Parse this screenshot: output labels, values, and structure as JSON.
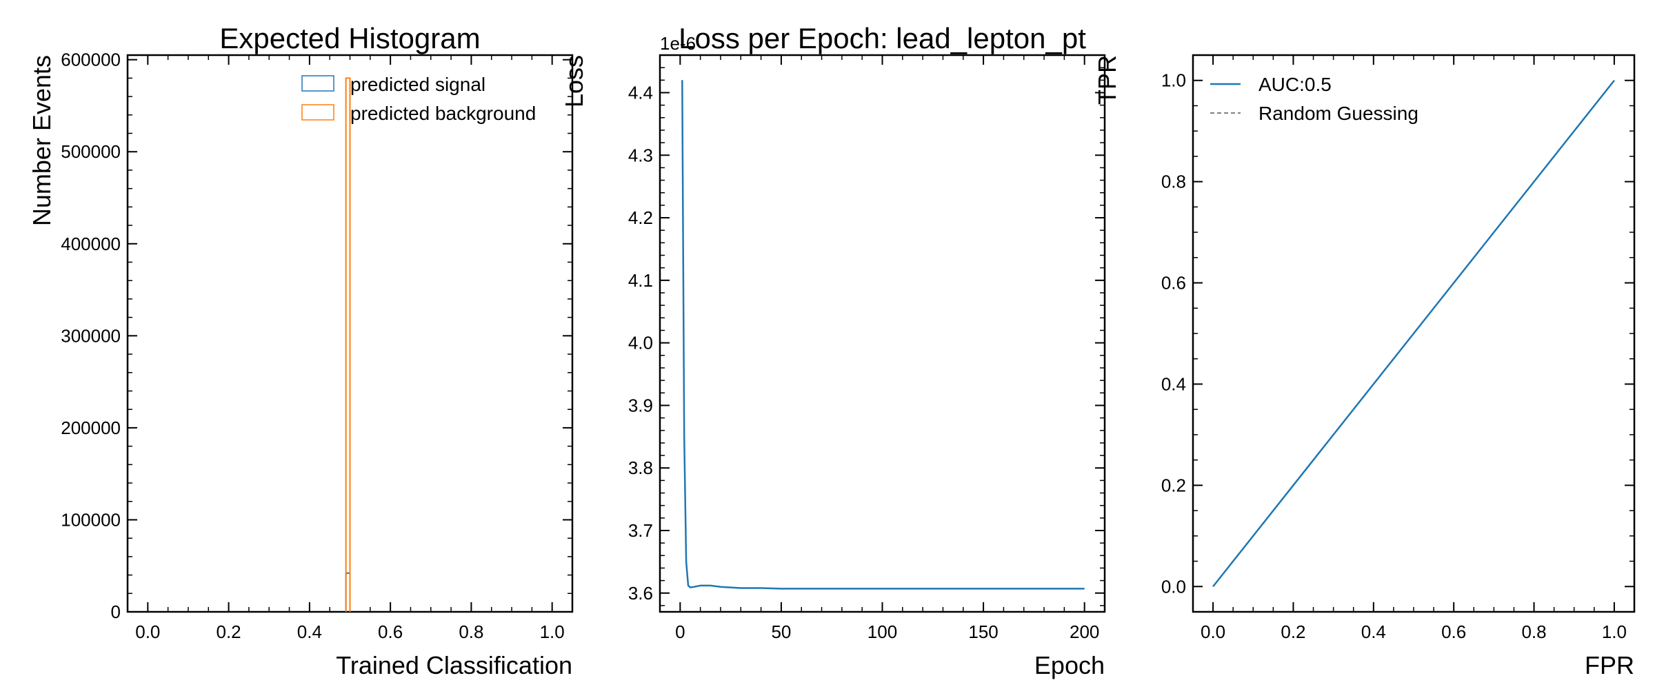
{
  "colors": {
    "signal": "#1f77b4",
    "background": "#ff7f0e",
    "loss_line": "#1f77b4",
    "roc_line": "#1f77b4",
    "random_line": "#555555"
  },
  "chart_data": [
    {
      "type": "histogram",
      "title": "Expected Histogram",
      "xlabel": "Trained Classification",
      "ylabel": "Number Events",
      "xlim": [
        -0.05,
        1.05
      ],
      "ylim": [
        0,
        605000
      ],
      "xticks": [
        0.0,
        0.2,
        0.4,
        0.6,
        0.8,
        1.0
      ],
      "xtick_labels": [
        "0.0",
        "0.2",
        "0.4",
        "0.6",
        "0.8",
        "1.0"
      ],
      "yticks": [
        0,
        100000,
        200000,
        300000,
        400000,
        500000,
        600000
      ],
      "ytick_labels": [
        "0",
        "100000",
        "200000",
        "300000",
        "400000",
        "500000",
        "600000"
      ],
      "legend_position": "top-right",
      "series": [
        {
          "name": "predicted signal",
          "bin_edges": [
            0.49,
            0.5
          ],
          "counts": [
            42000
          ]
        },
        {
          "name": "predicted background",
          "bin_edges": [
            0.49,
            0.5
          ],
          "counts": [
            580000
          ]
        }
      ]
    },
    {
      "type": "line",
      "title": "Loss per Epoch: lead_lepton_pt",
      "xlabel": "Epoch",
      "ylabel": "Loss",
      "offset_text": "1e-6",
      "xlim": [
        -10,
        210
      ],
      "ylim": [
        3.57,
        4.46
      ],
      "xticks": [
        0,
        50,
        100,
        150,
        200
      ],
      "xtick_labels": [
        "0",
        "50",
        "100",
        "150",
        "200"
      ],
      "yticks": [
        3.6,
        3.7,
        3.8,
        3.9,
        4.0,
        4.1,
        4.2,
        4.3,
        4.4
      ],
      "ytick_labels": [
        "3.6",
        "3.7",
        "3.8",
        "3.9",
        "4.0",
        "4.1",
        "4.2",
        "4.3",
        "4.4"
      ],
      "series": [
        {
          "x": [
            1,
            2,
            3,
            4,
            5,
            7,
            10,
            15,
            20,
            30,
            40,
            50,
            100,
            150,
            200
          ],
          "y": [
            4.42,
            3.85,
            3.65,
            3.612,
            3.609,
            3.61,
            3.612,
            3.612,
            3.61,
            3.608,
            3.608,
            3.607,
            3.607,
            3.607,
            3.607
          ]
        }
      ]
    },
    {
      "type": "line",
      "title": "",
      "xlabel": "FPR",
      "ylabel": "TPR",
      "xlim": [
        -0.05,
        1.05
      ],
      "ylim": [
        -0.05,
        1.05
      ],
      "xticks": [
        0.0,
        0.2,
        0.4,
        0.6,
        0.8,
        1.0
      ],
      "xtick_labels": [
        "0.0",
        "0.2",
        "0.4",
        "0.6",
        "0.8",
        "1.0"
      ],
      "yticks": [
        0.0,
        0.2,
        0.4,
        0.6,
        0.8,
        1.0
      ],
      "ytick_labels": [
        "0.0",
        "0.2",
        "0.4",
        "0.6",
        "0.8",
        "1.0"
      ],
      "legend_position": "top-left",
      "series": [
        {
          "name": "AUC:0.5",
          "style": "solid",
          "x": [
            0,
            1
          ],
          "y": [
            0,
            1
          ]
        },
        {
          "name": "Random Guessing",
          "style": "dashed",
          "x": [
            0,
            1
          ],
          "y": [
            0,
            1
          ]
        }
      ]
    }
  ]
}
